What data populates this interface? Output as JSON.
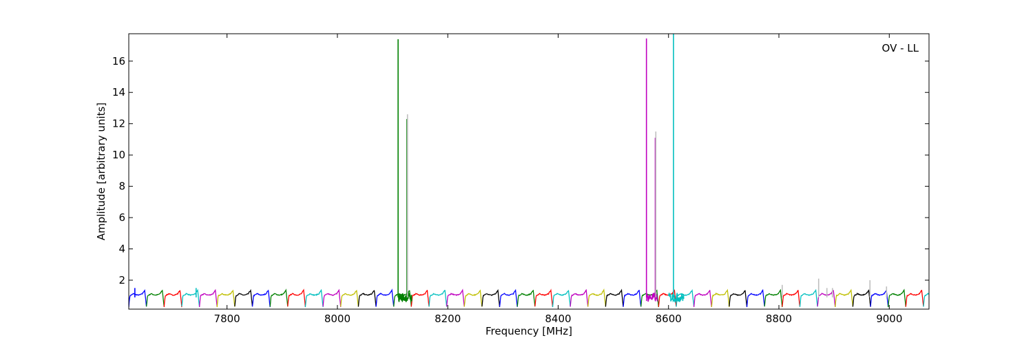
{
  "chart_data": {
    "type": "line",
    "title": "",
    "annotation": "OV - LL",
    "xlabel": "Frequency [MHz]",
    "ylabel": "Amplitude [arbitrary units]",
    "xlim": [
      7622,
      9072
    ],
    "ylim": [
      0.15,
      17.75
    ],
    "xticks": [
      7800,
      8000,
      8200,
      8400,
      8600,
      8800,
      9000
    ],
    "xtick_labels": [
      "7800",
      "8000",
      "8200",
      "8400",
      "8600",
      "8800",
      "9000"
    ],
    "yticks": [
      2,
      4,
      6,
      8,
      10,
      12,
      14,
      16
    ],
    "ytick_labels": [
      "2",
      "4",
      "6",
      "8",
      "10",
      "12",
      "14",
      "16"
    ],
    "grid": false,
    "legend": false,
    "channel_width_mhz": 32,
    "channel_start_mhz": 7622,
    "channel_colors": [
      "#0000ff",
      "#008000",
      "#ff0000",
      "#00bfbf",
      "#bf00bf",
      "#bfbf00",
      "#000000"
    ],
    "background_color": "#bebebe",
    "baseline_level": 1.1,
    "edge_level": 0.3,
    "spikes": [
      {
        "x": 8110,
        "y": 17.4,
        "color": "#008000"
      },
      {
        "x": 8126,
        "y": 12.3,
        "color": "#008000"
      },
      {
        "x": 8560,
        "y": 17.45,
        "color": "#bf00bf"
      },
      {
        "x": 8576,
        "y": 11.1,
        "color": "#bf00bf"
      },
      {
        "x": 8609,
        "y": 17.75,
        "color": "#00bfbf"
      },
      {
        "x": 8127,
        "y": 12.6,
        "color": "#bebebe"
      },
      {
        "x": 8577,
        "y": 11.5,
        "color": "#bebebe"
      },
      {
        "x": 8806,
        "y": 1.7,
        "color": "#bebebe"
      },
      {
        "x": 8872,
        "y": 2.1,
        "color": "#bebebe"
      },
      {
        "x": 8887,
        "y": 1.5,
        "color": "#bebebe"
      },
      {
        "x": 8897,
        "y": 1.5,
        "color": "#bebebe"
      },
      {
        "x": 8965,
        "y": 2.0,
        "color": "#bebebe"
      },
      {
        "x": 8995,
        "y": 1.6,
        "color": "#bebebe"
      },
      {
        "x": 7633,
        "y": 1.5,
        "color": "#0000ff"
      },
      {
        "x": 7744,
        "y": 1.5,
        "color": "#00bfbf"
      }
    ]
  }
}
